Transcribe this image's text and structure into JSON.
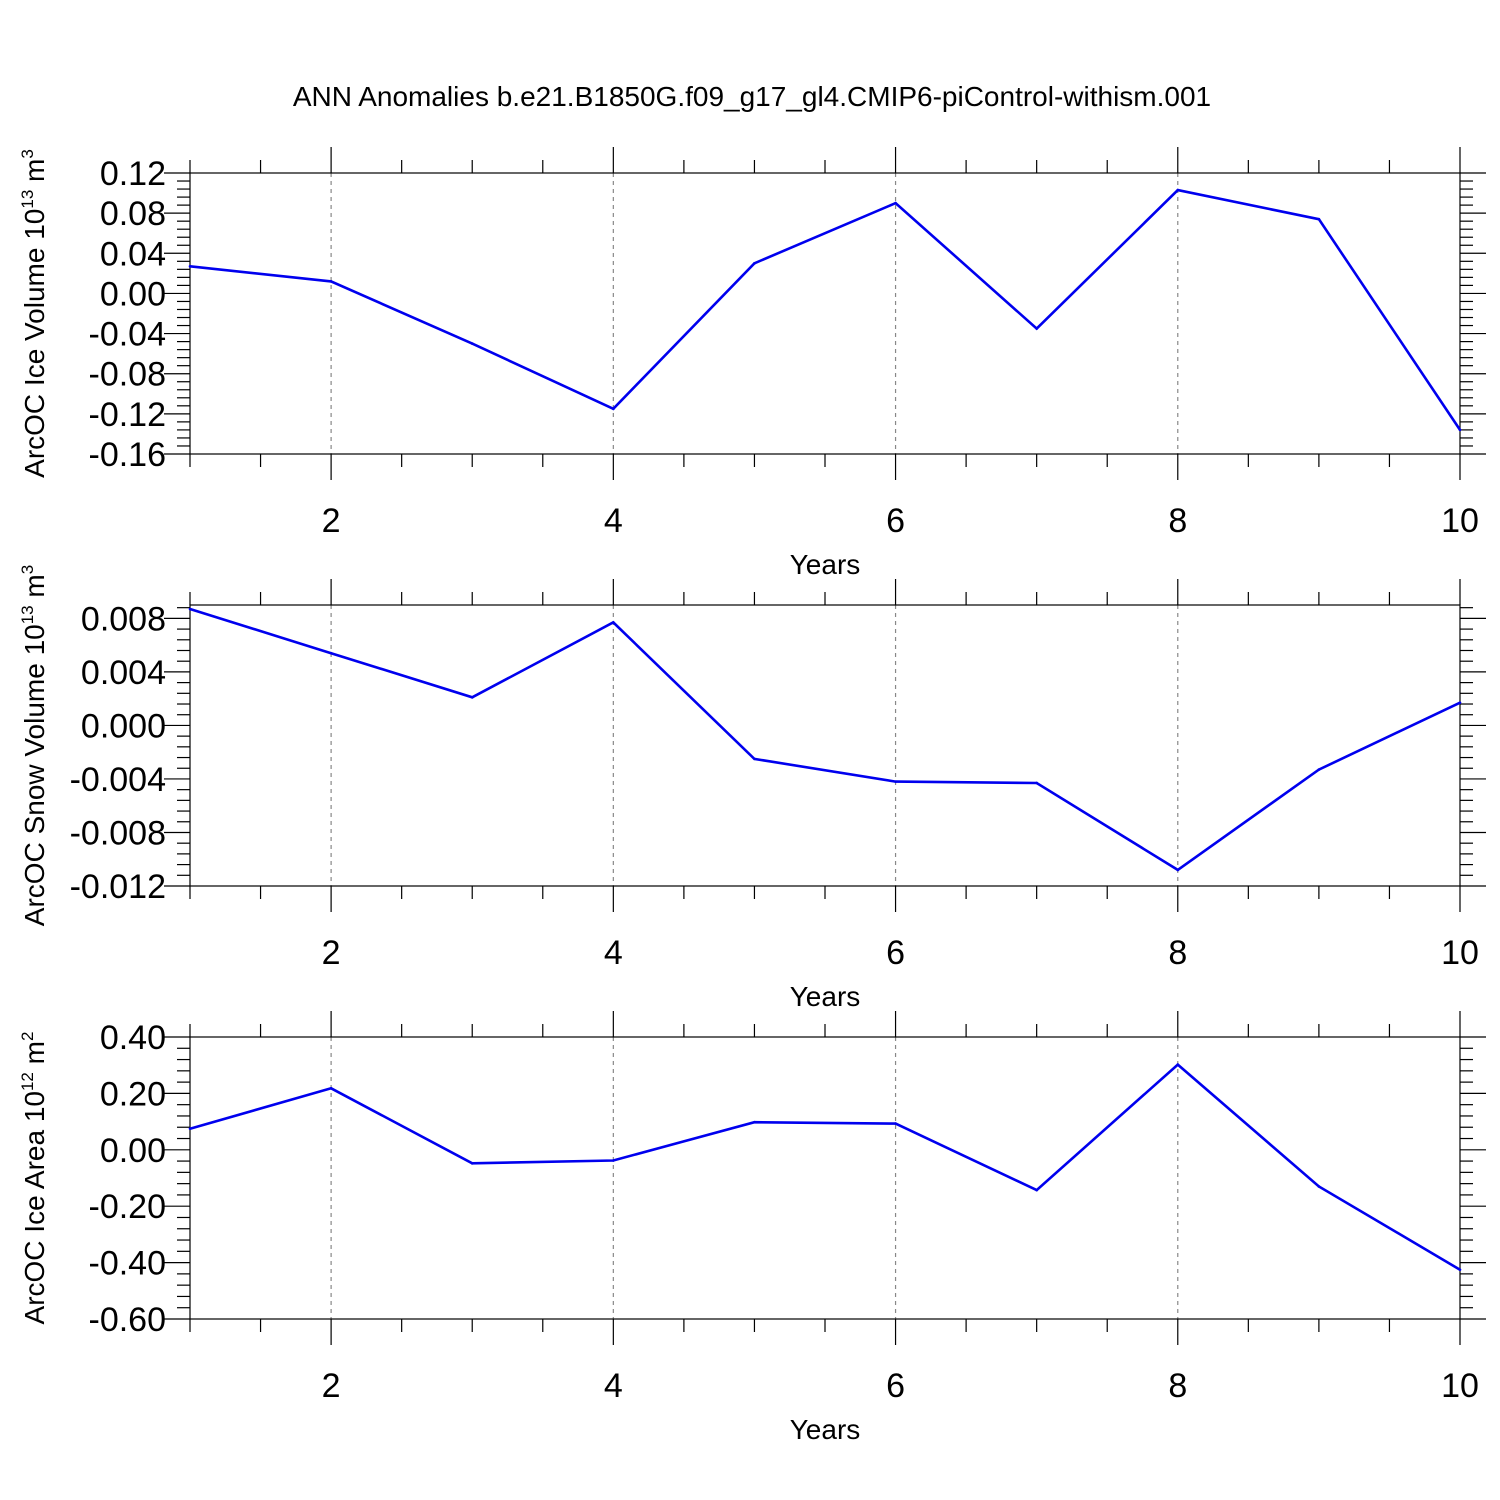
{
  "figure_title": "ANN Anomalies b.e21.B1850G.f09_g17_gl4.CMIP6-piControl-withism.001",
  "colors": {
    "series": "#0000ee",
    "grid": "#888888",
    "frame": "#000000"
  },
  "chart_data": [
    {
      "type": "line",
      "title": "",
      "xlabel": "Years",
      "ylabel": {
        "text": "ArcOC Ice Volume 10",
        "sup1": "13",
        "mid": " m",
        "sup2": "3"
      },
      "xlim": [
        1,
        10
      ],
      "ylim": [
        -0.16,
        0.12
      ],
      "grid": "dashed vertical lines at major x ticks",
      "xticks": [
        2,
        4,
        6,
        8,
        10
      ],
      "xtick_labels": [
        "2",
        "4",
        "6",
        "8",
        "10"
      ],
      "yticks": [
        -0.16,
        -0.12,
        -0.08,
        -0.04,
        0.0,
        0.04,
        0.08,
        0.12
      ],
      "ytick_labels": [
        "-0.16",
        "-0.12",
        "-0.08",
        "-0.04",
        "0.00",
        "0.04",
        "0.08",
        "0.12"
      ],
      "yminor_per_major": 5,
      "x": [
        1,
        2,
        3,
        4,
        5,
        6,
        7,
        8,
        9,
        10
      ],
      "values": [
        0.027,
        0.012,
        -0.05,
        -0.115,
        0.03,
        0.09,
        -0.035,
        0.103,
        0.074,
        -0.136
      ]
    },
    {
      "type": "line",
      "title": "",
      "xlabel": "Years",
      "ylabel": {
        "text": "ArcOC Snow Volume 10",
        "sup1": "13",
        "mid": " m",
        "sup2": "3"
      },
      "xlim": [
        1,
        10
      ],
      "ylim": [
        -0.012,
        0.009
      ],
      "grid": "dashed vertical lines at major x ticks",
      "xticks": [
        2,
        4,
        6,
        8,
        10
      ],
      "xtick_labels": [
        "2",
        "4",
        "6",
        "8",
        "10"
      ],
      "yticks": [
        -0.012,
        -0.008,
        -0.004,
        0.0,
        0.004,
        0.008
      ],
      "ytick_labels": [
        "-0.012",
        "-0.008",
        "-0.004",
        "0.000",
        "0.004",
        "0.008"
      ],
      "yminor_per_major": 5,
      "x": [
        1,
        2,
        3,
        4,
        5,
        6,
        7,
        8,
        9,
        10
      ],
      "values": [
        0.0087,
        0.0054,
        0.0021,
        0.0077,
        -0.0025,
        -0.0042,
        -0.0043,
        -0.0108,
        -0.0033,
        0.0017
      ]
    },
    {
      "type": "line",
      "title": "",
      "xlabel": "Years",
      "ylabel": {
        "text": "ArcOC Ice Area 10",
        "sup1": "12",
        "mid": " m",
        "sup2": "2"
      },
      "xlim": [
        1,
        10
      ],
      "ylim": [
        -0.6,
        0.4
      ],
      "grid": "dashed vertical lines at major x ticks",
      "xticks": [
        2,
        4,
        6,
        8,
        10
      ],
      "xtick_labels": [
        "2",
        "4",
        "6",
        "8",
        "10"
      ],
      "yticks": [
        -0.6,
        -0.4,
        -0.2,
        0.0,
        0.2,
        0.4
      ],
      "ytick_labels": [
        "-0.60",
        "-0.40",
        "-0.20",
        "0.00",
        "0.20",
        "0.40"
      ],
      "yminor_per_major": 5,
      "x": [
        1,
        2,
        3,
        4,
        5,
        6,
        7,
        8,
        9,
        10
      ],
      "values": [
        0.075,
        0.218,
        -0.048,
        -0.038,
        0.098,
        0.093,
        -0.143,
        0.302,
        -0.13,
        -0.425
      ]
    }
  ]
}
